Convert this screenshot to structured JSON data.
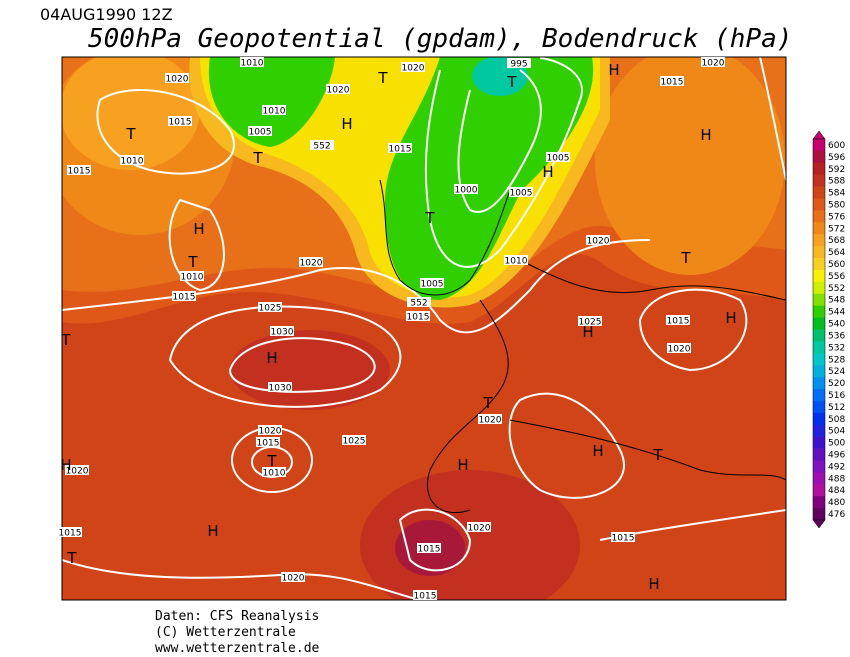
{
  "header": {
    "date": "04AUG1990 12Z",
    "title": "500hPa Geopotential (gpdam), Bodendruck (hPa)"
  },
  "footer": [
    "Daten: CFS Reanalysis",
    "(C) Wetterzentrale",
    "www.wetterzentrale.de"
  ],
  "colorbar": [
    {
      "label": 600,
      "color": "#c8006e"
    },
    {
      "label": 596,
      "color": "#b01040"
    },
    {
      "label": 592,
      "color": "#b82020"
    },
    {
      "label": 588,
      "color": "#c43020"
    },
    {
      "label": 584,
      "color": "#d04418"
    },
    {
      "label": 580,
      "color": "#e05818"
    },
    {
      "label": 576,
      "color": "#e87018"
    },
    {
      "label": 572,
      "color": "#f08818"
    },
    {
      "label": 568,
      "color": "#f8a020"
    },
    {
      "label": 564,
      "color": "#f8b820"
    },
    {
      "label": 560,
      "color": "#f8d020"
    },
    {
      "label": 556,
      "color": "#f8f000"
    },
    {
      "label": 552,
      "color": "#d0f000"
    },
    {
      "label": 548,
      "color": "#80e000"
    },
    {
      "label": 544,
      "color": "#30d000"
    },
    {
      "label": 540,
      "color": "#00c020"
    },
    {
      "label": 536,
      "color": "#00c070"
    },
    {
      "label": 532,
      "color": "#00c8a0"
    },
    {
      "label": 528,
      "color": "#00c8c8"
    },
    {
      "label": 524,
      "color": "#00b0e0"
    },
    {
      "label": 520,
      "color": "#0090f0"
    },
    {
      "label": 516,
      "color": "#0070f8"
    },
    {
      "label": 512,
      "color": "#0050f8"
    },
    {
      "label": 508,
      "color": "#0030f0"
    },
    {
      "label": 504,
      "color": "#2020e0"
    },
    {
      "label": 500,
      "color": "#4010d0"
    },
    {
      "label": 496,
      "color": "#6010c0"
    },
    {
      "label": 492,
      "color": "#8010c0"
    },
    {
      "label": 488,
      "color": "#a010b0"
    },
    {
      "label": 484,
      "color": "#b010a0"
    },
    {
      "label": 480,
      "color": "#800080"
    },
    {
      "label": 476,
      "color": "#600060"
    }
  ],
  "isobar_labels": [
    "1020",
    "1010",
    "1020",
    "1020",
    "995",
    "1015",
    "1020",
    "1015",
    "1010",
    "1005",
    "1010",
    "1015",
    "1015",
    "1005",
    "1000",
    "1005",
    "1010",
    "1020",
    "1020",
    "1010",
    "1015",
    "1005",
    "1025",
    "1015",
    "1025",
    "1015",
    "1030",
    "1020",
    "1030",
    "1020",
    "1025",
    "1020",
    "1015",
    "1010",
    "1020",
    "1020",
    "1015",
    "1015",
    "1015",
    "1020",
    "1015",
    "552",
    "552"
  ],
  "markers": [
    "T",
    "H",
    "T",
    "T",
    "H",
    "T",
    "H",
    "H",
    "T",
    "H",
    "T",
    "T",
    "H",
    "H",
    "H",
    "T",
    "H",
    "H",
    "T",
    "T",
    "H",
    "T",
    "H",
    "T",
    "H"
  ]
}
